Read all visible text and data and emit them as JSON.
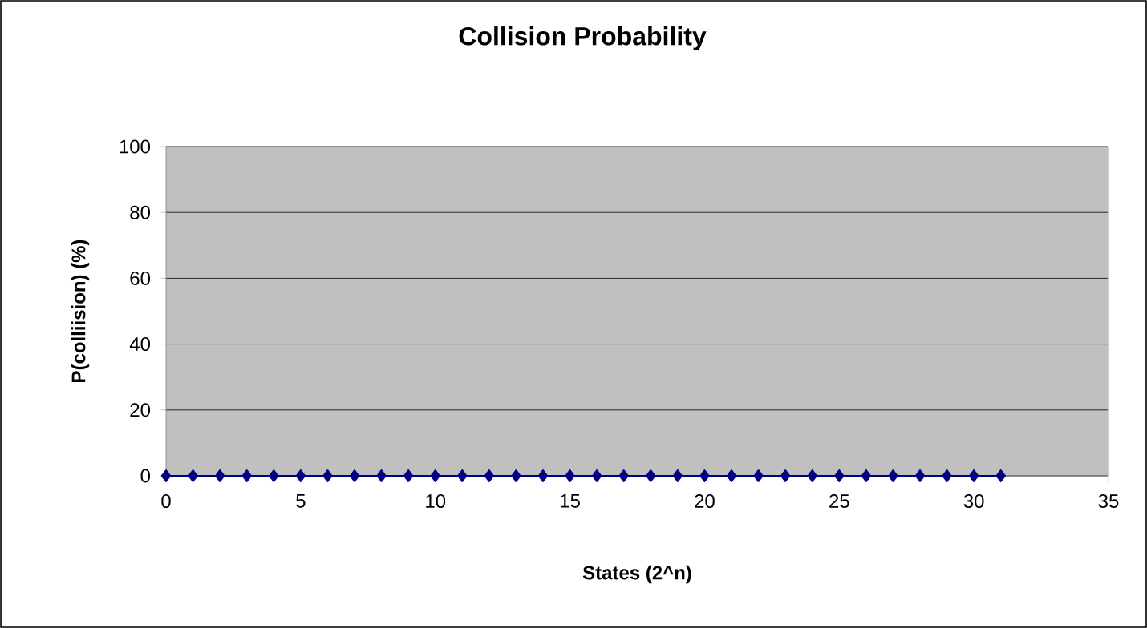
{
  "chart_data": {
    "type": "line",
    "title": "Collision Probability",
    "xlabel": "States (2^n)",
    "ylabel": "P(colliision) (%)",
    "x": [
      0,
      1,
      2,
      3,
      4,
      5,
      6,
      7,
      8,
      9,
      10,
      11,
      12,
      13,
      14,
      15,
      16,
      17,
      18,
      19,
      20,
      21,
      22,
      23,
      24,
      25,
      26,
      27,
      28,
      29,
      30,
      31
    ],
    "series": [
      {
        "color": "#000080",
        "values": [
          0,
          0,
          0,
          0,
          0,
          0,
          0,
          0,
          0,
          0,
          0,
          0,
          0,
          0,
          0,
          0,
          0,
          0,
          0,
          0,
          0,
          0,
          0,
          0,
          0,
          0,
          0,
          0,
          0,
          0,
          0,
          0
        ]
      }
    ],
    "xlim": [
      0,
      35
    ],
    "xticks": [
      0,
      5,
      10,
      15,
      20,
      25,
      30,
      35
    ],
    "ylim": [
      0,
      100
    ],
    "yticks": [
      0,
      20,
      40,
      60,
      80,
      100
    ],
    "grid": "y",
    "marker": "diamond",
    "line_style": "solid"
  }
}
